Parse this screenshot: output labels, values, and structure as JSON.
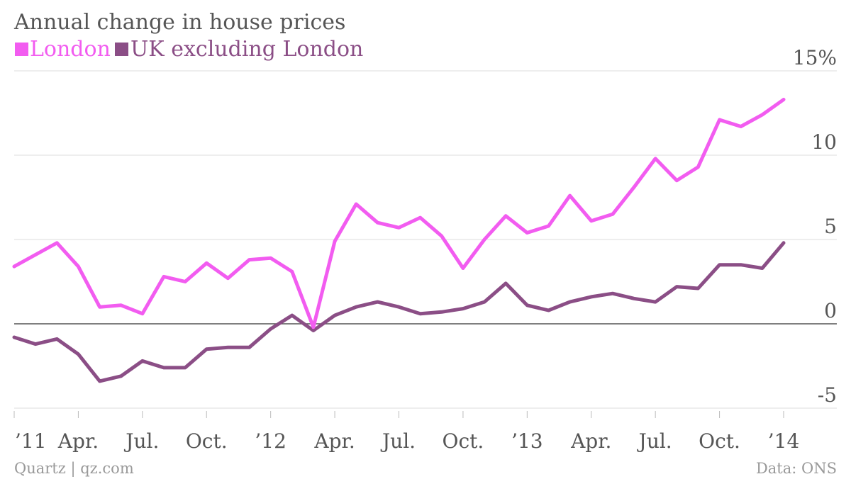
{
  "chart_data": {
    "type": "line",
    "title": "Annual change in house prices",
    "x": [
      "Jan 2011",
      "Feb 2011",
      "Mar 2011",
      "Apr 2011",
      "May 2011",
      "Jun 2011",
      "Jul 2011",
      "Aug 2011",
      "Sep 2011",
      "Oct 2011",
      "Nov 2011",
      "Dec 2011",
      "Jan 2012",
      "Feb 2012",
      "Mar 2012",
      "Apr 2012",
      "May 2012",
      "Jun 2012",
      "Jul 2012",
      "Aug 2012",
      "Sep 2012",
      "Oct 2012",
      "Nov 2012",
      "Dec 2012",
      "Jan 2013",
      "Feb 2013",
      "Mar 2013",
      "Apr 2013",
      "May 2013",
      "Jun 2013",
      "Jul 2013",
      "Aug 2013",
      "Sep 2013",
      "Oct 2013",
      "Nov 2013",
      "Dec 2013",
      "Jan 2014"
    ],
    "x_tick_labels": [
      "’11",
      "Apr.",
      "Jul.",
      "Oct.",
      "’12",
      "Apr.",
      "Jul.",
      "Oct.",
      "’13",
      "Apr.",
      "Jul.",
      "Oct.",
      "’14"
    ],
    "y_tick_labels": [
      "15%",
      "10",
      "5",
      "0",
      "-5"
    ],
    "y_ticks": [
      15,
      10,
      5,
      0,
      -5
    ],
    "ylim": [
      -5,
      15
    ],
    "grid": true,
    "legend_placement": "top-left",
    "series": [
      {
        "name": "London",
        "color": "#f25cf0",
        "values": [
          3.4,
          4.1,
          4.8,
          3.4,
          1.0,
          1.1,
          0.6,
          2.8,
          2.5,
          3.6,
          2.7,
          3.8,
          3.9,
          3.1,
          -0.2,
          4.9,
          7.1,
          6.0,
          5.7,
          6.3,
          5.2,
          3.3,
          5.0,
          6.4,
          5.4,
          5.8,
          7.6,
          6.1,
          6.5,
          8.1,
          9.8,
          8.5,
          9.3,
          12.1,
          11.7,
          12.4,
          13.3
        ]
      },
      {
        "name": "UK excluding London",
        "color": "#8b4e86",
        "values": [
          -0.8,
          -1.2,
          -0.9,
          -1.8,
          -3.4,
          -3.1,
          -2.2,
          -2.6,
          -2.6,
          -1.5,
          -1.4,
          -1.4,
          -0.3,
          0.5,
          -0.4,
          0.5,
          1.0,
          1.3,
          1.0,
          0.6,
          0.7,
          0.9,
          1.3,
          2.4,
          1.1,
          0.8,
          1.3,
          1.6,
          1.8,
          1.5,
          1.3,
          2.2,
          2.1,
          3.5,
          3.5,
          3.3,
          4.8
        ]
      }
    ]
  },
  "footer": {
    "source_left": "Quartz | qz.com",
    "source_right": "Data: ONS"
  }
}
